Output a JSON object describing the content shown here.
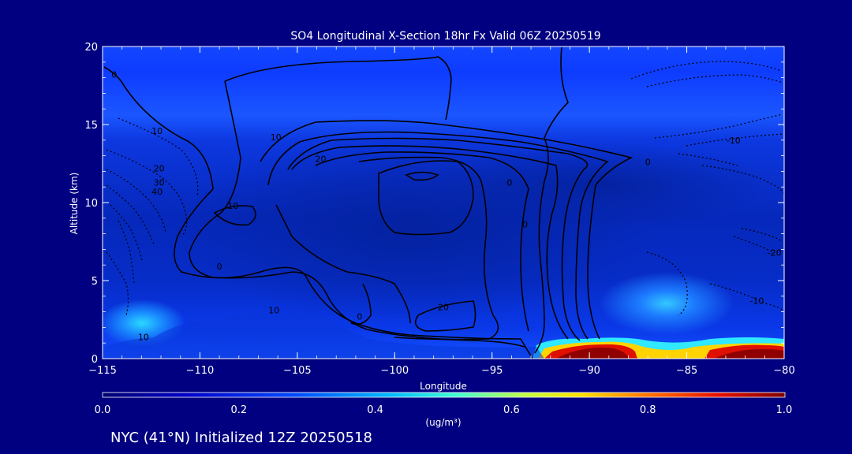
{
  "chart_data": {
    "type": "heatmap",
    "title": "SO4 Longitudinal X-Section 18hr  Fx Valid 06Z 20250519",
    "xlabel": "Longitude",
    "ylabel": "Altitude (km)",
    "xlim": [
      -115,
      -80
    ],
    "ylim": [
      0,
      20
    ],
    "x_ticks": [
      -115,
      -110,
      -105,
      -100,
      -95,
      -90,
      -85,
      -80
    ],
    "y_ticks": [
      0,
      5,
      10,
      15,
      20
    ],
    "x_tick_labels": [
      "−115",
      "−110",
      "−105",
      "−100",
      "−95",
      "−90",
      "−85",
      "−80"
    ],
    "y_tick_labels": [
      "0",
      "5",
      "10",
      "15",
      "20"
    ],
    "colorbar": {
      "label": "(ug/m³)",
      "range": [
        0.0,
        1.0
      ],
      "tick_values": [
        0.0,
        0.2,
        0.4,
        0.6,
        0.8,
        1.0
      ],
      "tick_labels": [
        "0.0",
        "0.2",
        "0.4",
        "0.6",
        "0.8",
        "1.0"
      ]
    },
    "contour_labels": [
      {
        "text": "0",
        "lon": -114.4,
        "alt": 18.2
      },
      {
        "text": "10",
        "lon": -112.2,
        "alt": 14.6
      },
      {
        "text": "20",
        "lon": -112.1,
        "alt": 12.2
      },
      {
        "text": "30",
        "lon": -112.1,
        "alt": 11.3
      },
      {
        "text": "40",
        "lon": -112.2,
        "alt": 10.7
      },
      {
        "text": "10",
        "lon": -106.1,
        "alt": 14.2
      },
      {
        "text": "20",
        "lon": -103.8,
        "alt": 12.8
      },
      {
        "text": "10",
        "lon": -108.3,
        "alt": 9.8
      },
      {
        "text": "0",
        "lon": -109.0,
        "alt": 5.9
      },
      {
        "text": "10",
        "lon": -106.2,
        "alt": 3.1
      },
      {
        "text": "10",
        "lon": -112.9,
        "alt": 1.4
      },
      {
        "text": "0",
        "lon": -101.8,
        "alt": 2.7
      },
      {
        "text": "0",
        "lon": -94.1,
        "alt": 11.3
      },
      {
        "text": "0",
        "lon": -93.3,
        "alt": 8.6
      },
      {
        "text": "20",
        "lon": -97.5,
        "alt": 3.3
      },
      {
        "text": "0",
        "lon": -87.0,
        "alt": 12.6
      },
      {
        "text": "-10",
        "lon": -82.6,
        "alt": 14.0
      },
      {
        "text": "-20",
        "lon": -80.5,
        "alt": 6.8
      },
      {
        "text": "-10",
        "lon": -81.4,
        "alt": 3.7
      }
    ],
    "regions": [
      {
        "name": "high-concentration surface band",
        "lon_range": [
          -91.5,
          -80
        ],
        "alt_range": [
          0,
          1.2
        ],
        "value": 1.0
      },
      {
        "name": "low-level cyan maximum",
        "lon_range": [
          -114,
          -111
        ],
        "alt_range": [
          1.2,
          3.2
        ],
        "value": 0.45
      },
      {
        "name": "mid-level maximum",
        "lon_range": [
          -88,
          -82
        ],
        "alt_range": [
          2.5,
          4.8
        ],
        "value": 0.42
      }
    ]
  },
  "footer": {
    "caption": "NYC (41°N) Initialized 12Z 20250518"
  }
}
